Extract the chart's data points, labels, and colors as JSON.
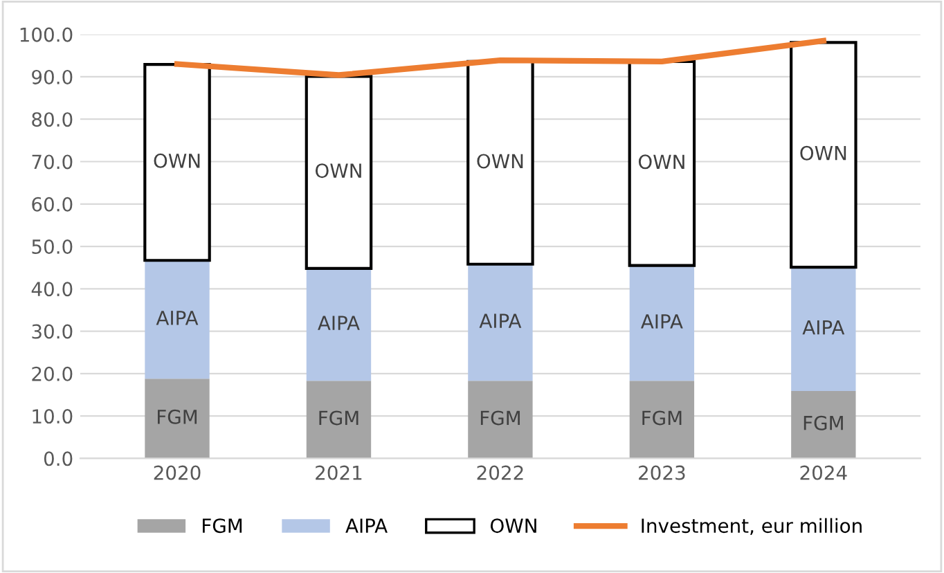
{
  "chart_data": {
    "type": "bar",
    "stacked": true,
    "categories": [
      "2020",
      "2021",
      "2022",
      "2023",
      "2024"
    ],
    "series": [
      {
        "name": "FGM",
        "color": "#a5a5a5",
        "values": [
          18.8,
          18.3,
          18.3,
          18.3,
          15.9
        ]
      },
      {
        "name": "AIPA",
        "color": "#b4c7e7",
        "values": [
          27.9,
          26.5,
          27.5,
          27.2,
          29.2
        ]
      },
      {
        "name": "OWN",
        "color": "#ffffff",
        "values": [
          46.2,
          45.3,
          47.8,
          48.1,
          53.0
        ]
      },
      {
        "name": "Investment, eur million",
        "type": "line",
        "color": "#ed7d31",
        "values": [
          93.0,
          90.4,
          93.9,
          93.6,
          98.5
        ]
      }
    ],
    "ylim": [
      0,
      100
    ],
    "yticks": [
      {
        "value": 0,
        "label": "0.0"
      },
      {
        "value": 10,
        "label": "10.0"
      },
      {
        "value": 20,
        "label": "20.0"
      },
      {
        "value": 30,
        "label": "30.0"
      },
      {
        "value": 40,
        "label": "40.0"
      },
      {
        "value": 50,
        "label": "50.0"
      },
      {
        "value": 60,
        "label": "60.0"
      },
      {
        "value": 70,
        "label": "70.0"
      },
      {
        "value": 80,
        "label": "80.0"
      },
      {
        "value": 90,
        "label": "90.0"
      },
      {
        "value": 100,
        "label": "100.0"
      }
    ],
    "grid": "y",
    "legend": "bottom"
  }
}
